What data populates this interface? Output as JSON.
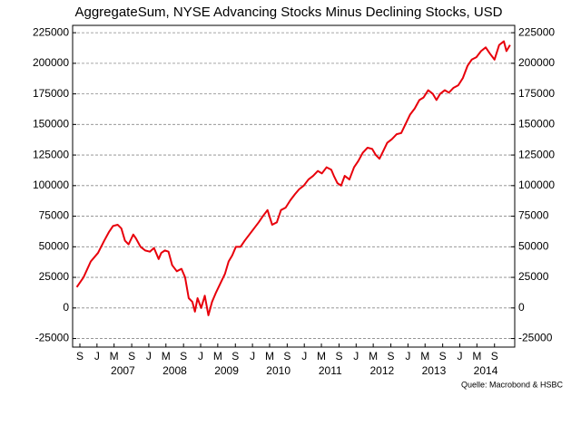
{
  "chart_data": {
    "type": "line",
    "title": "AggregateSum, NYSE Advancing Stocks Minus Declining Stocks, USD",
    "source": "Quelle: Macrobond & HSBC",
    "x": [
      2006.61,
      2006.74,
      2006.88,
      2007.02,
      2007.14,
      2007.23,
      2007.31,
      2007.4,
      2007.47,
      2007.54,
      2007.61,
      2007.7,
      2007.75,
      2007.84,
      2007.93,
      2008.02,
      2008.1,
      2008.19,
      2008.24,
      2008.31,
      2008.38,
      2008.45,
      2008.54,
      2008.63,
      2008.7,
      2008.77,
      2008.84,
      2008.89,
      2008.94,
      2009.01,
      2009.08,
      2009.15,
      2009.22,
      2009.29,
      2009.38,
      2009.47,
      2009.54,
      2009.61,
      2009.68,
      2009.77,
      2009.85,
      2009.94,
      2010.03,
      2010.12,
      2010.2,
      2010.29,
      2010.38,
      2010.47,
      2010.55,
      2010.64,
      2010.73,
      2010.82,
      2010.9,
      2010.99,
      2011.08,
      2011.17,
      2011.26,
      2011.34,
      2011.43,
      2011.52,
      2011.57,
      2011.64,
      2011.71,
      2011.78,
      2011.87,
      2011.96,
      2012.04,
      2012.13,
      2012.22,
      2012.31,
      2012.38,
      2012.45,
      2012.52,
      2012.6,
      2012.69,
      2012.78,
      2012.87,
      2012.95,
      2013.04,
      2013.13,
      2013.22,
      2013.3,
      2013.39,
      2013.48,
      2013.55,
      2013.62,
      2013.71,
      2013.79,
      2013.88,
      2013.97,
      2014.06,
      2014.15,
      2014.23,
      2014.32,
      2014.41,
      2014.5,
      2014.58,
      2014.67,
      2014.76,
      2014.85,
      2014.9,
      2014.97
    ],
    "series": [
      {
        "name": "AggregateSum",
        "color": "#e8000b",
        "values": [
          17000,
          25000,
          38000,
          45000,
          55000,
          62000,
          67000,
          68000,
          65000,
          55000,
          52000,
          60000,
          57000,
          50000,
          47000,
          46000,
          49000,
          40000,
          45000,
          47000,
          46000,
          35000,
          30000,
          32000,
          25000,
          8000,
          5000,
          -3000,
          8000,
          0,
          10000,
          -6000,
          5000,
          12000,
          20000,
          28000,
          38000,
          43000,
          50000,
          50000,
          55000,
          60000,
          65000,
          70000,
          75000,
          80000,
          68000,
          70000,
          80000,
          82000,
          88000,
          93000,
          97000,
          100000,
          105000,
          108000,
          112000,
          110000,
          115000,
          113000,
          108000,
          102000,
          100000,
          108000,
          105000,
          115000,
          120000,
          127000,
          131000,
          130000,
          125000,
          122000,
          128000,
          135000,
          138000,
          142000,
          143000,
          150000,
          158000,
          163000,
          170000,
          172000,
          178000,
          175000,
          170000,
          175000,
          178000,
          176000,
          180000,
          182000,
          188000,
          198000,
          203000,
          205000,
          210000,
          213000,
          208000,
          203000,
          215000,
          218000,
          210000,
          215000
        ]
      }
    ],
    "xlim": [
      2006.53,
      2015.06
    ],
    "xticks": [
      {
        "value": 2006.67,
        "label": "S"
      },
      {
        "value": 2007,
        "label": "J"
      },
      {
        "value": 2007.33,
        "label": "M"
      },
      {
        "value": 2007.67,
        "label": "S"
      },
      {
        "value": 2008,
        "label": "J"
      },
      {
        "value": 2008.33,
        "label": "M"
      },
      {
        "value": 2008.67,
        "label": "S"
      },
      {
        "value": 2009,
        "label": "J"
      },
      {
        "value": 2009.33,
        "label": "M"
      },
      {
        "value": 2009.67,
        "label": "S"
      },
      {
        "value": 2010,
        "label": "J"
      },
      {
        "value": 2010.33,
        "label": "M"
      },
      {
        "value": 2010.67,
        "label": "S"
      },
      {
        "value": 2011,
        "label": "J"
      },
      {
        "value": 2011.33,
        "label": "M"
      },
      {
        "value": 2011.67,
        "label": "S"
      },
      {
        "value": 2012,
        "label": "J"
      },
      {
        "value": 2012.33,
        "label": "M"
      },
      {
        "value": 2012.67,
        "label": "S"
      },
      {
        "value": 2013,
        "label": "J"
      },
      {
        "value": 2013.33,
        "label": "M"
      },
      {
        "value": 2013.67,
        "label": "S"
      },
      {
        "value": 2014,
        "label": "J"
      },
      {
        "value": 2014.33,
        "label": "M"
      },
      {
        "value": 2014.67,
        "label": "S"
      }
    ],
    "year_labels": [
      2007,
      2008,
      2009,
      2010,
      2011,
      2012,
      2013,
      2014
    ],
    "ylim": [
      -32000,
      231000
    ],
    "yticks": [
      225000,
      200000,
      175000,
      150000,
      125000,
      100000,
      75000,
      50000,
      25000,
      0,
      -25000
    ],
    "y2lim": [
      -32000,
      231000
    ],
    "y2ticks": [
      225000,
      200000,
      175000,
      150000,
      125000,
      100000,
      75000,
      50000,
      25000,
      0,
      -25000
    ],
    "grid": true
  }
}
